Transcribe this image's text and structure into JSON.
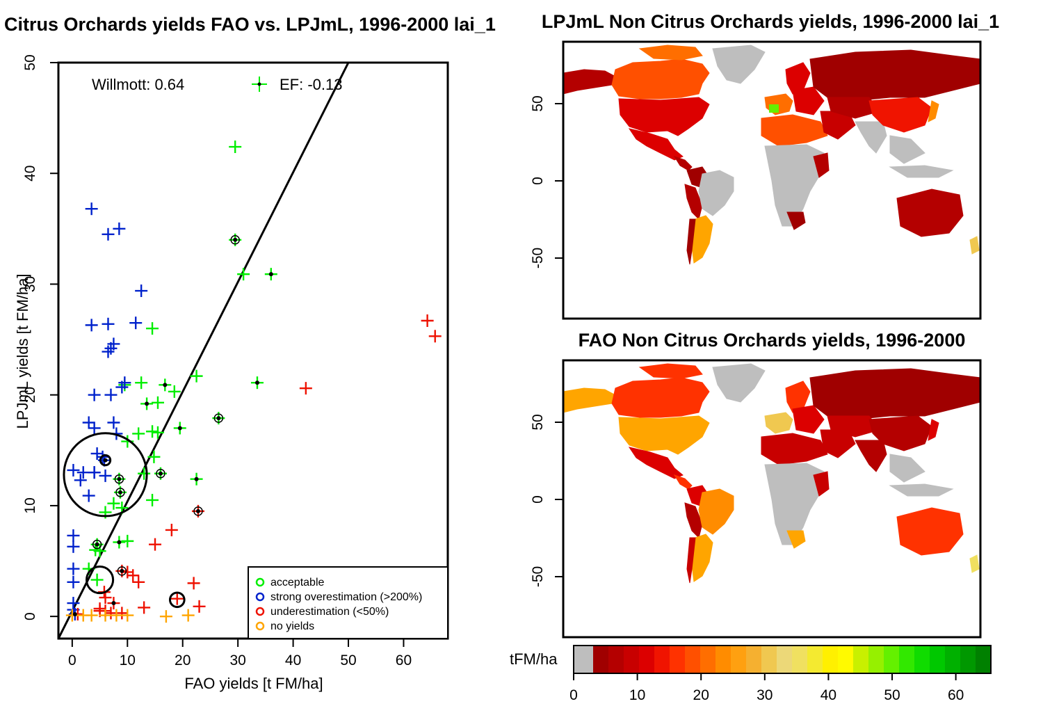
{
  "scatter": {
    "title": "Citrus Orchards yields FAO vs. LPJmL, 1996-2000 lai_1",
    "xlabel": "FAO yields [t FM/ha]",
    "ylabel": "LPJmL yields [t FM/ha]",
    "willmott": "Willmott: 0.64",
    "ef": "EF: -0.13",
    "legend": [
      {
        "label": "acceptable",
        "color": "#00ee00"
      },
      {
        "label": "strong overestimation (>200%)",
        "color": "#0022cc"
      },
      {
        "label": "underestimation (<50%)",
        "color": "#ee1100"
      },
      {
        "label": "no yields",
        "color": "#ffa500"
      }
    ]
  },
  "map_top": {
    "title": "LPJmL Non Citrus Orchards yields, 1996-2000 lai_1",
    "yticks": [
      "50",
      "0",
      "-50"
    ]
  },
  "map_bottom": {
    "title": "FAO Non Citrus Orchards yields, 1996-2000",
    "yticks": [
      "50",
      "0",
      "-50"
    ]
  },
  "colorbar": {
    "label": "tFM/ha",
    "ticks": [
      "0",
      "10",
      "20",
      "30",
      "40",
      "50",
      "60"
    ],
    "colors": [
      "#bebebe",
      "#a00000",
      "#b40000",
      "#c80000",
      "#dc0000",
      "#f01400",
      "#ff3200",
      "#ff5000",
      "#ff6e00",
      "#ff8c00",
      "#ffa010",
      "#f5b030",
      "#f0c850",
      "#ecd878",
      "#f0e060",
      "#f4ea30",
      "#fff000",
      "#fffa00",
      "#c8f000",
      "#96f000",
      "#64f000",
      "#32e800",
      "#10dc00",
      "#00c800",
      "#00b000",
      "#009800",
      "#008000"
    ]
  },
  "chart_data": [
    {
      "type": "scatter",
      "title": "Citrus Orchards yields FAO vs. LPJmL, 1996-2000 lai_1",
      "xlabel": "FAO yields [t FM/ha]",
      "ylabel": "LPJmL yields [t FM/ha]",
      "xlim": [
        -2.5,
        68
      ],
      "ylim": [
        -2,
        50
      ],
      "xticks": [
        0,
        10,
        20,
        30,
        40,
        50,
        60
      ],
      "yticks": [
        0,
        10,
        20,
        30,
        40,
        50
      ],
      "legend_position": "bottom-right",
      "annotations": [
        "Willmott: 0.64",
        "EF: -0.13"
      ],
      "regression_line": {
        "x": [
          -2.5,
          50
        ],
        "y": [
          -2,
          50
        ]
      },
      "series": [
        {
          "name": "acceptable",
          "color": "#00ee00",
          "points": [
            [
              29.5,
              42.4
            ],
            [
              29.5,
              34
            ],
            [
              31,
              30.9
            ],
            [
              36,
              30.9
            ],
            [
              14.5,
              26
            ],
            [
              16.8,
              20.9
            ],
            [
              9.5,
              20.9
            ],
            [
              12.5,
              21.1
            ],
            [
              18.5,
              20.3
            ],
            [
              22.5,
              21.7
            ],
            [
              33.5,
              21.1
            ],
            [
              13.5,
              19.2
            ],
            [
              15.5,
              19.3
            ],
            [
              26.5,
              17.9
            ],
            [
              19.5,
              17
            ],
            [
              12,
              16.5
            ],
            [
              14.5,
              16.7
            ],
            [
              15.5,
              16.6
            ],
            [
              10,
              15.8
            ],
            [
              14.8,
              14.4
            ],
            [
              13,
              12.9
            ],
            [
              16,
              12.9
            ],
            [
              22.5,
              12.4
            ],
            [
              8.5,
              12.4
            ],
            [
              8.7,
              11.2
            ],
            [
              14.5,
              10.5
            ],
            [
              7.5,
              10.2
            ],
            [
              9,
              9.8
            ],
            [
              6,
              9.4
            ],
            [
              8.5,
              6.7
            ],
            [
              10,
              6.8
            ],
            [
              4.5,
              6.5
            ],
            [
              5,
              5.9
            ],
            [
              4.2,
              6
            ],
            [
              3,
              4.3
            ],
            [
              4.5,
              3.3
            ]
          ]
        },
        {
          "name": "strong overestimation (>200%)",
          "color": "#0022cc",
          "points": [
            [
              3.5,
              36.8
            ],
            [
              8.5,
              35
            ],
            [
              6.5,
              34.5
            ],
            [
              12.5,
              29.4
            ],
            [
              3.5,
              26.3
            ],
            [
              6.5,
              26.4
            ],
            [
              11.5,
              26.5
            ],
            [
              7.5,
              24.6
            ],
            [
              6.5,
              23.9
            ],
            [
              7,
              24.2
            ],
            [
              9.5,
              21.1
            ],
            [
              9,
              20.7
            ],
            [
              4,
              20
            ],
            [
              7,
              20
            ],
            [
              3,
              17.5
            ],
            [
              7.5,
              17.5
            ],
            [
              4,
              17
            ],
            [
              8,
              16.5
            ],
            [
              4.5,
              14.7
            ],
            [
              5.5,
              14.4
            ],
            [
              5.8,
              14.1
            ],
            [
              4,
              13
            ],
            [
              0.2,
              13.2
            ],
            [
              2,
              13
            ],
            [
              4,
              13
            ],
            [
              6,
              12.7
            ],
            [
              1.5,
              12.3
            ],
            [
              3,
              10.9
            ],
            [
              0.2,
              7.3
            ],
            [
              0.2,
              6.3
            ],
            [
              0.2,
              4.3
            ],
            [
              0.2,
              3.1
            ],
            [
              0.2,
              1.2
            ],
            [
              0.2,
              0.6
            ],
            [
              0.5,
              0.2
            ]
          ]
        },
        {
          "name": "underestimation (<50%)",
          "color": "#ee1100",
          "points": [
            [
              64.3,
              26.7
            ],
            [
              65.7,
              25.3
            ],
            [
              42.3,
              20.6
            ],
            [
              18,
              7.8
            ],
            [
              22.8,
              9.5
            ],
            [
              15,
              6.5
            ],
            [
              10,
              4
            ],
            [
              11,
              3.7
            ],
            [
              12,
              3.1
            ],
            [
              22,
              3
            ],
            [
              9,
              4.1
            ],
            [
              5.8,
              2.2
            ],
            [
              6,
              1.7
            ],
            [
              7.5,
              1.2
            ],
            [
              5,
              0.7
            ],
            [
              6,
              0.5
            ],
            [
              7,
              0.3
            ],
            [
              9,
              0.3
            ],
            [
              13,
              0.8
            ],
            [
              19,
              1.6
            ],
            [
              23,
              0.9
            ],
            [
              1,
              0.2
            ],
            [
              5,
              0.5
            ]
          ]
        },
        {
          "name": "no yields",
          "color": "#ffa500",
          "points": [
            [
              0,
              0.1
            ],
            [
              2,
              0.1
            ],
            [
              3.5,
              0.1
            ],
            [
              6,
              0.1
            ],
            [
              8,
              0.1
            ],
            [
              10,
              0.1
            ],
            [
              17,
              0
            ],
            [
              21,
              0.1
            ]
          ]
        }
      ],
      "circles": [
        {
          "x": 6,
          "y": 12.8,
          "r": 7.5
        },
        {
          "x": 5,
          "y": 3.3,
          "r": 2.4
        },
        {
          "x": 19,
          "y": 1.5,
          "r": 1.3
        },
        {
          "x": 6,
          "y": 14.1,
          "r": 0.9
        }
      ]
    },
    {
      "type": "heatmap",
      "title": "LPJmL Non Citrus Orchards yields, 1996-2000 lai_1",
      "ylim": [
        -90,
        90
      ],
      "yticks": [
        50,
        0,
        -50
      ]
    },
    {
      "type": "heatmap",
      "title": "FAO Non Citrus Orchards yields, 1996-2000",
      "ylim": [
        -90,
        90
      ],
      "yticks": [
        50,
        0,
        -50
      ]
    }
  ]
}
